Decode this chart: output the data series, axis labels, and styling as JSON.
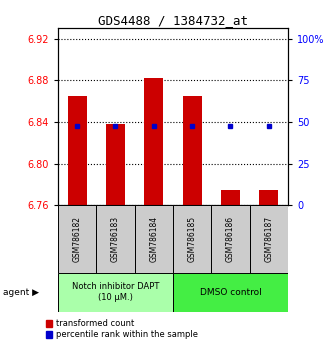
{
  "title": "GDS4488 / 1384732_at",
  "samples": [
    "GSM786182",
    "GSM786183",
    "GSM786184",
    "GSM786185",
    "GSM786186",
    "GSM786187"
  ],
  "bar_bottoms": [
    6.76,
    6.76,
    6.76,
    6.76,
    6.76,
    6.76
  ],
  "bar_tops": [
    6.865,
    6.838,
    6.882,
    6.865,
    6.775,
    6.775
  ],
  "percentile_values": [
    6.836,
    6.836,
    6.836,
    6.836,
    6.836,
    6.836
  ],
  "percentile_show": [
    true,
    true,
    true,
    true,
    true,
    true
  ],
  "ylim": [
    6.76,
    6.93
  ],
  "yticks_left": [
    6.76,
    6.8,
    6.84,
    6.88,
    6.92
  ],
  "yticks_right_labels": [
    "0",
    "25",
    "50",
    "75",
    "100%"
  ],
  "yticks_right_vals": [
    6.76,
    6.8,
    6.84,
    6.88,
    6.92
  ],
  "bar_color": "#cc0000",
  "percentile_color": "#0000cc",
  "bar_width": 0.5,
  "group1_label": "Notch inhibitor DAPT\n(10 μM.)",
  "group2_label": "DMSO control",
  "group1_indices": [
    0,
    1,
    2
  ],
  "group2_indices": [
    3,
    4,
    5
  ],
  "group1_color": "#aaffaa",
  "group2_color": "#44ee44",
  "agent_label": "agent",
  "legend_red": "transformed count",
  "legend_blue": "percentile rank within the sample",
  "box_color": "#cccccc"
}
